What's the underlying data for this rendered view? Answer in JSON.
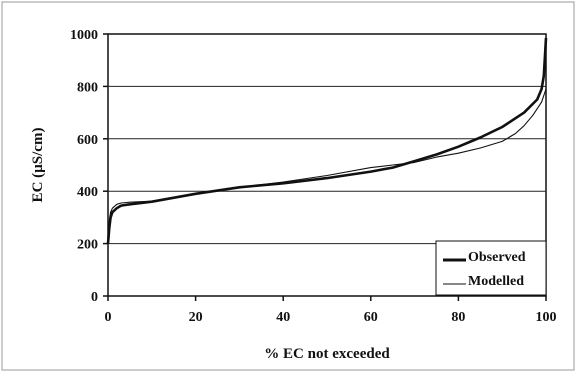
{
  "chart_data": {
    "type": "line",
    "title": "",
    "xlabel": "% EC not exceeded",
    "ylabel": "EC (µS/cm)",
    "xlim": [
      0,
      100
    ],
    "ylim": [
      0,
      1000
    ],
    "x_ticks": [
      0,
      20,
      40,
      60,
      80,
      100
    ],
    "y_ticks": [
      0,
      200,
      400,
      600,
      800,
      1000
    ],
    "x_tick_labels": [
      "0",
      "20",
      "40",
      "60",
      "80",
      "100"
    ],
    "y_tick_labels": [
      "0",
      "200",
      "400",
      "600",
      "800",
      "1000"
    ],
    "grid": "horizontal",
    "legend_position": "bottom-right",
    "series": [
      {
        "name": "Observed",
        "color": "#111111",
        "style": "thick",
        "x": [
          0,
          0.3,
          0.6,
          1,
          2,
          3,
          5,
          10,
          20,
          30,
          40,
          50,
          60,
          65,
          70,
          75,
          80,
          85,
          90,
          95,
          98,
          99,
          99.5,
          100
        ],
        "y": [
          200,
          260,
          300,
          320,
          335,
          345,
          350,
          360,
          390,
          415,
          430,
          450,
          475,
          490,
          515,
          540,
          570,
          605,
          645,
          700,
          750,
          790,
          840,
          985
        ]
      },
      {
        "name": "Modelled",
        "color": "#111111",
        "style": "thin",
        "x": [
          0,
          0.3,
          0.6,
          1,
          2,
          3,
          5,
          10,
          20,
          30,
          40,
          50,
          60,
          65,
          70,
          75,
          80,
          85,
          90,
          93,
          95,
          97,
          99,
          100
        ],
        "y": [
          200,
          290,
          320,
          335,
          350,
          355,
          358,
          362,
          390,
          415,
          435,
          460,
          490,
          500,
          510,
          530,
          545,
          565,
          590,
          620,
          650,
          690,
          740,
          790
        ]
      }
    ]
  }
}
